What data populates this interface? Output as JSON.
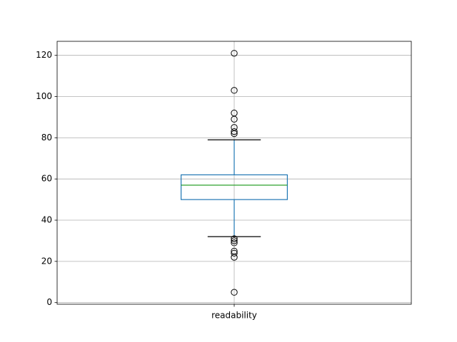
{
  "chart_data": {
    "type": "box",
    "categories": [
      "readability"
    ],
    "boxes": [
      {
        "q1": 50,
        "median": 57,
        "q3": 62,
        "whislo": 32,
        "whishi": 79,
        "fliers": [
          121,
          103,
          92,
          89,
          85,
          83,
          82,
          31,
          30,
          29,
          25,
          24,
          22,
          5
        ]
      }
    ],
    "color": "#1f77b4",
    "median_color": "#2ca02c",
    "cap_color": "#000000",
    "ylim": [
      -0.8,
      126.8
    ],
    "yticks": [
      0,
      20,
      40,
      60,
      80,
      100,
      120
    ],
    "grid": true
  }
}
